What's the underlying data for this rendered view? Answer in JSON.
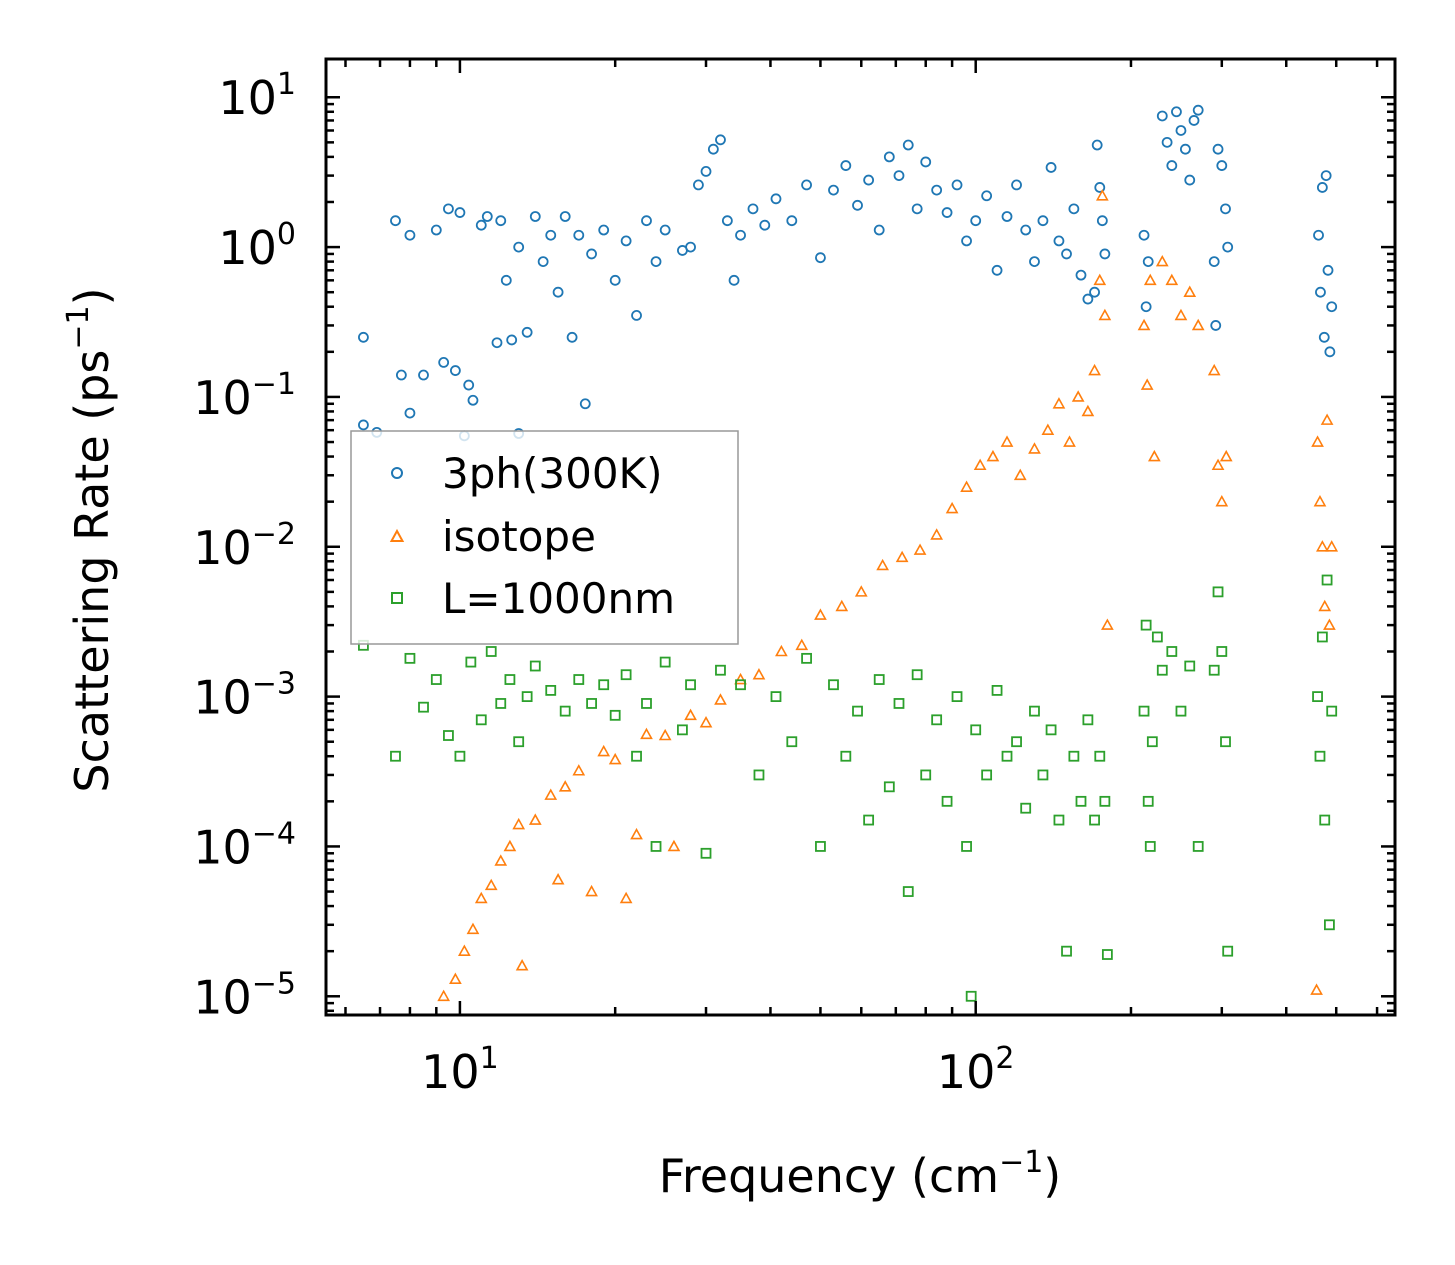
{
  "chart_data": {
    "type": "scatter",
    "title": "",
    "xlabel": "Frequency (cm",
    "xlabel_exp": "−1",
    "xlabel_tail": ")",
    "ylabel": "Scattering Rate (ps",
    "ylabel_exp": "−1",
    "ylabel_tail": ")",
    "xscale": "log",
    "yscale": "log",
    "xlim": [
      5.5,
      650
    ],
    "ylim": [
      7.5e-06,
      18
    ],
    "grid": false,
    "legend_position": "center-left",
    "x_ticks": [
      {
        "value": 10,
        "base": "10",
        "exp": "1"
      },
      {
        "value": 100,
        "base": "10",
        "exp": "2"
      }
    ],
    "y_ticks": [
      {
        "value": 10,
        "base": "10",
        "exp": "1"
      },
      {
        "value": 1,
        "base": "10",
        "exp": "0"
      },
      {
        "value": 0.1,
        "base": "10",
        "exp": "−1"
      },
      {
        "value": 0.01,
        "base": "10",
        "exp": "−2"
      },
      {
        "value": 0.001,
        "base": "10",
        "exp": "−3"
      },
      {
        "value": 0.0001,
        "base": "10",
        "exp": "−4"
      },
      {
        "value": 1e-05,
        "base": "10",
        "exp": "−5"
      }
    ],
    "series": [
      {
        "name": "3ph(300K)",
        "marker": "circle",
        "color": "#1f77b4",
        "points": [
          [
            6.5,
            0.25
          ],
          [
            6.5,
            0.065
          ],
          [
            6.9,
            0.058
          ],
          [
            7.5,
            1.5
          ],
          [
            7.7,
            0.14
          ],
          [
            8.0,
            1.2
          ],
          [
            8.0,
            0.078
          ],
          [
            8.5,
            0.14
          ],
          [
            9.0,
            1.3
          ],
          [
            9.3,
            0.17
          ],
          [
            9.5,
            1.8
          ],
          [
            9.8,
            0.15
          ],
          [
            10,
            1.7
          ],
          [
            10.2,
            0.055
          ],
          [
            10.4,
            0.12
          ],
          [
            10.6,
            0.095
          ],
          [
            11.0,
            1.4
          ],
          [
            11.3,
            1.6
          ],
          [
            11.8,
            0.23
          ],
          [
            12.0,
            1.5
          ],
          [
            12.3,
            0.6
          ],
          [
            12.6,
            0.24
          ],
          [
            13.0,
            1.0
          ],
          [
            13.0,
            0.057
          ],
          [
            13.5,
            0.27
          ],
          [
            14.0,
            1.6
          ],
          [
            14.5,
            0.8
          ],
          [
            15.0,
            1.2
          ],
          [
            15.5,
            0.5
          ],
          [
            16.0,
            1.6
          ],
          [
            16.5,
            0.25
          ],
          [
            17.0,
            1.2
          ],
          [
            17.5,
            0.09
          ],
          [
            18,
            0.9
          ],
          [
            19,
            1.3
          ],
          [
            20,
            0.6
          ],
          [
            21,
            1.1
          ],
          [
            22,
            0.35
          ],
          [
            23,
            1.5
          ],
          [
            24,
            0.8
          ],
          [
            25,
            1.3
          ],
          [
            27,
            0.95
          ],
          [
            28,
            1.0
          ],
          [
            29,
            2.6
          ],
          [
            30,
            3.2
          ],
          [
            31,
            4.5
          ],
          [
            32,
            5.2
          ],
          [
            33,
            1.5
          ],
          [
            34,
            0.6
          ],
          [
            35,
            1.2
          ],
          [
            37,
            1.8
          ],
          [
            39,
            1.4
          ],
          [
            41,
            2.1
          ],
          [
            44,
            1.5
          ],
          [
            47,
            2.6
          ],
          [
            50,
            0.85
          ],
          [
            53,
            2.4
          ],
          [
            56,
            3.5
          ],
          [
            59,
            1.9
          ],
          [
            62,
            2.8
          ],
          [
            65,
            1.3
          ],
          [
            68,
            4.0
          ],
          [
            71,
            3.0
          ],
          [
            74,
            4.8
          ],
          [
            77,
            1.8
          ],
          [
            80,
            3.7
          ],
          [
            84,
            2.4
          ],
          [
            88,
            1.7
          ],
          [
            92,
            2.6
          ],
          [
            96,
            1.1
          ],
          [
            100,
            1.5
          ],
          [
            105,
            2.2
          ],
          [
            110,
            0.7
          ],
          [
            115,
            1.6
          ],
          [
            120,
            2.6
          ],
          [
            125,
            1.3
          ],
          [
            130,
            0.8
          ],
          [
            135,
            1.5
          ],
          [
            140,
            3.4
          ],
          [
            145,
            1.1
          ],
          [
            150,
            0.9
          ],
          [
            155,
            1.8
          ],
          [
            160,
            0.65
          ],
          [
            165,
            0.45
          ],
          [
            170,
            0.5
          ],
          [
            172,
            4.8
          ],
          [
            174,
            2.5
          ],
          [
            176,
            1.5
          ],
          [
            178,
            0.9
          ],
          [
            212,
            1.2
          ],
          [
            214,
            0.4
          ],
          [
            216,
            0.8
          ],
          [
            230,
            7.5
          ],
          [
            235,
            5.0
          ],
          [
            240,
            3.5
          ],
          [
            245,
            8.0
          ],
          [
            250,
            6.0
          ],
          [
            255,
            4.5
          ],
          [
            260,
            2.8
          ],
          [
            265,
            7.0
          ],
          [
            270,
            8.2
          ],
          [
            290,
            0.8
          ],
          [
            292,
            0.3
          ],
          [
            295,
            4.5
          ],
          [
            300,
            3.5
          ],
          [
            305,
            1.8
          ],
          [
            308,
            1.0
          ],
          [
            462,
            1.2
          ],
          [
            466,
            0.5
          ],
          [
            470,
            2.5
          ],
          [
            474,
            0.25
          ],
          [
            478,
            3.0
          ],
          [
            482,
            0.7
          ],
          [
            486,
            0.2
          ],
          [
            490,
            0.4
          ]
        ]
      },
      {
        "name": "isotope",
        "marker": "triangle",
        "color": "#ff7f0e",
        "points": [
          [
            9.3,
            1e-05
          ],
          [
            9.8,
            1.3e-05
          ],
          [
            10.2,
            2e-05
          ],
          [
            10.6,
            2.8e-05
          ],
          [
            11.0,
            4.5e-05
          ],
          [
            11.5,
            5.5e-05
          ],
          [
            12.0,
            8e-05
          ],
          [
            12.5,
            0.0001
          ],
          [
            13.0,
            0.00014
          ],
          [
            13.2,
            1.6e-05
          ],
          [
            14.0,
            0.00015
          ],
          [
            15.0,
            0.00022
          ],
          [
            15.5,
            6e-05
          ],
          [
            16.0,
            0.00025
          ],
          [
            17.0,
            0.00032
          ],
          [
            18,
            5e-05
          ],
          [
            19,
            0.00043
          ],
          [
            20,
            0.00038
          ],
          [
            21,
            4.5e-05
          ],
          [
            22,
            0.00012
          ],
          [
            23,
            0.00056
          ],
          [
            25,
            0.00055
          ],
          [
            26,
            0.0001
          ],
          [
            28,
            0.00075
          ],
          [
            30,
            0.00067
          ],
          [
            32,
            0.00095
          ],
          [
            35,
            0.0013
          ],
          [
            38,
            0.0014
          ],
          [
            42,
            0.002
          ],
          [
            46,
            0.0022
          ],
          [
            50,
            0.0035
          ],
          [
            55,
            0.004
          ],
          [
            60,
            0.005
          ],
          [
            66,
            0.0075
          ],
          [
            72,
            0.0085
          ],
          [
            78,
            0.0095
          ],
          [
            84,
            0.012
          ],
          [
            90,
            0.018
          ],
          [
            96,
            0.025
          ],
          [
            102,
            0.035
          ],
          [
            108,
            0.04
          ],
          [
            115,
            0.05
          ],
          [
            122,
            0.03
          ],
          [
            130,
            0.045
          ],
          [
            138,
            0.06
          ],
          [
            145,
            0.09
          ],
          [
            152,
            0.05
          ],
          [
            158,
            0.1
          ],
          [
            165,
            0.08
          ],
          [
            170,
            0.15
          ],
          [
            174,
            0.6
          ],
          [
            176,
            2.2
          ],
          [
            178,
            0.35
          ],
          [
            180,
            0.003
          ],
          [
            212,
            0.3
          ],
          [
            215,
            0.12
          ],
          [
            218,
            0.6
          ],
          [
            222,
            0.04
          ],
          [
            230,
            0.8
          ],
          [
            240,
            0.6
          ],
          [
            250,
            0.35
          ],
          [
            260,
            0.5
          ],
          [
            270,
            0.3
          ],
          [
            290,
            0.15
          ],
          [
            295,
            0.035
          ],
          [
            300,
            0.02
          ],
          [
            306,
            0.04
          ],
          [
            460,
            0.05
          ],
          [
            465,
            0.02
          ],
          [
            470,
            0.01
          ],
          [
            475,
            0.004
          ],
          [
            480,
            0.07
          ],
          [
            485,
            0.003
          ],
          [
            458,
            1.1e-05
          ],
          [
            490,
            0.01
          ]
        ]
      },
      {
        "name": "L=1000nm",
        "marker": "square",
        "color": "#2ca02c",
        "points": [
          [
            6.5,
            0.0022
          ],
          [
            7.5,
            0.0004
          ],
          [
            8.0,
            0.0018
          ],
          [
            8.5,
            0.00085
          ],
          [
            9.0,
            0.0013
          ],
          [
            9.5,
            0.00055
          ],
          [
            10.0,
            0.0004
          ],
          [
            10.5,
            0.0017
          ],
          [
            11.0,
            0.0007
          ],
          [
            11.5,
            0.002
          ],
          [
            12.0,
            0.0009
          ],
          [
            12.5,
            0.0013
          ],
          [
            13.0,
            0.0005
          ],
          [
            13.5,
            0.001
          ],
          [
            14.0,
            0.0016
          ],
          [
            15.0,
            0.0011
          ],
          [
            16.0,
            0.0008
          ],
          [
            17.0,
            0.0013
          ],
          [
            18.0,
            0.0009
          ],
          [
            19,
            0.0012
          ],
          [
            20,
            0.00075
          ],
          [
            21,
            0.0014
          ],
          [
            22,
            0.0004
          ],
          [
            23,
            0.0009
          ],
          [
            24,
            0.0001
          ],
          [
            25,
            0.0017
          ],
          [
            27,
            0.0006
          ],
          [
            28,
            0.0012
          ],
          [
            30,
            9e-05
          ],
          [
            32,
            0.0015
          ],
          [
            35,
            0.0012
          ],
          [
            38,
            0.0003
          ],
          [
            41,
            0.001
          ],
          [
            44,
            0.0005
          ],
          [
            47,
            0.0018
          ],
          [
            50,
            0.0001
          ],
          [
            53,
            0.0012
          ],
          [
            56,
            0.0004
          ],
          [
            59,
            0.0008
          ],
          [
            62,
            0.00015
          ],
          [
            65,
            0.0013
          ],
          [
            68,
            0.00025
          ],
          [
            71,
            0.0009
          ],
          [
            74,
            5e-05
          ],
          [
            77,
            0.0014
          ],
          [
            80,
            0.0003
          ],
          [
            84,
            0.0007
          ],
          [
            88,
            0.0002
          ],
          [
            92,
            0.001
          ],
          [
            96,
            0.0001
          ],
          [
            98,
            1e-05
          ],
          [
            100,
            0.0006
          ],
          [
            105,
            0.0003
          ],
          [
            110,
            0.0011
          ],
          [
            115,
            0.0004
          ],
          [
            120,
            0.0005
          ],
          [
            125,
            0.00018
          ],
          [
            130,
            0.0008
          ],
          [
            135,
            0.0003
          ],
          [
            140,
            0.0006
          ],
          [
            145,
            0.00015
          ],
          [
            150,
            2e-05
          ],
          [
            155,
            0.0004
          ],
          [
            160,
            0.0002
          ],
          [
            165,
            0.0007
          ],
          [
            170,
            0.00015
          ],
          [
            174,
            0.0004
          ],
          [
            178,
            0.0002
          ],
          [
            180,
            1.9e-05
          ],
          [
            212,
            0.0008
          ],
          [
            214,
            0.003
          ],
          [
            216,
            0.0002
          ],
          [
            218,
            0.0001
          ],
          [
            220,
            0.0005
          ],
          [
            225,
            0.0025
          ],
          [
            230,
            0.0015
          ],
          [
            240,
            0.002
          ],
          [
            250,
            0.0008
          ],
          [
            260,
            0.0016
          ],
          [
            270,
            0.0001
          ],
          [
            290,
            0.0015
          ],
          [
            295,
            0.005
          ],
          [
            300,
            0.002
          ],
          [
            305,
            0.0005
          ],
          [
            308,
            2e-05
          ],
          [
            460,
            0.001
          ],
          [
            465,
            0.0004
          ],
          [
            470,
            0.0025
          ],
          [
            475,
            0.00015
          ],
          [
            480,
            0.006
          ],
          [
            485,
            3e-05
          ],
          [
            490,
            0.0008
          ]
        ]
      }
    ]
  }
}
